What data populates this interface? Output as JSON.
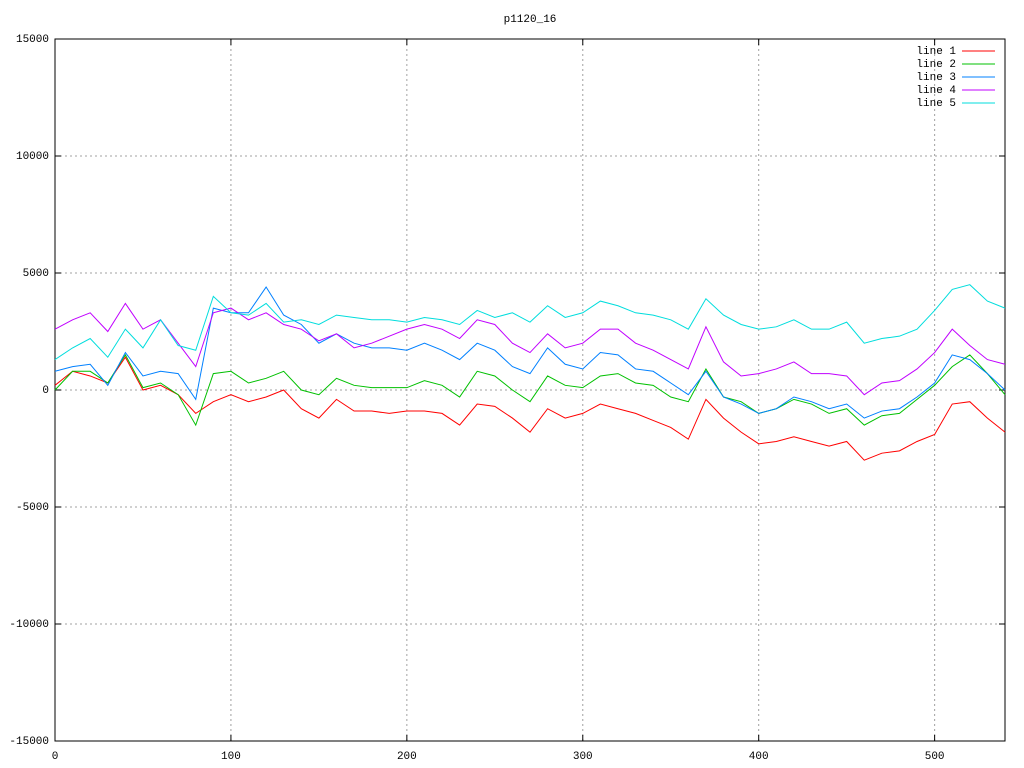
{
  "chart_data": {
    "type": "line",
    "title": "p1120_16",
    "x": [
      0,
      10,
      20,
      30,
      40,
      50,
      60,
      70,
      80,
      90,
      100,
      110,
      120,
      130,
      140,
      150,
      160,
      170,
      180,
      190,
      200,
      210,
      220,
      230,
      240,
      250,
      260,
      270,
      280,
      290,
      300,
      310,
      320,
      330,
      340,
      350,
      360,
      370,
      380,
      390,
      400,
      410,
      420,
      430,
      440,
      450,
      460,
      470,
      480,
      490,
      500,
      510,
      520,
      530,
      540
    ],
    "xlim": [
      0,
      540
    ],
    "xticks": [
      0,
      100,
      200,
      300,
      400,
      500
    ],
    "ylim": [
      -15000,
      15000
    ],
    "yticks": [
      -15000,
      -10000,
      -5000,
      0,
      5000,
      10000,
      15000
    ],
    "grid": true,
    "legend": "top-right",
    "series": [
      {
        "name": "line 1",
        "color": "#ff0000",
        "values": [
          200,
          800,
          600,
          300,
          1400,
          0,
          200,
          -200,
          -1000,
          -500,
          -200,
          -500,
          -300,
          0,
          -800,
          -1200,
          -400,
          -900,
          -900,
          -1000,
          -900,
          -900,
          -1000,
          -1500,
          -600,
          -700,
          -1200,
          -1800,
          -800,
          -1200,
          -1000,
          -600,
          -800,
          -1000,
          -1300,
          -1600,
          -2100,
          -400,
          -1200,
          -1800,
          -2300,
          -2200,
          -2000,
          -2200,
          -2400,
          -2200,
          -3000,
          -2700,
          -2600,
          -2200,
          -1900,
          -600,
          -500,
          -1200,
          -1800
        ]
      },
      {
        "name": "line 2",
        "color": "#00c000",
        "values": [
          0,
          800,
          800,
          300,
          1500,
          100,
          300,
          -200,
          -1500,
          700,
          800,
          300,
          500,
          800,
          0,
          -200,
          500,
          200,
          100,
          100,
          100,
          400,
          200,
          -300,
          800,
          600,
          0,
          -500,
          600,
          200,
          100,
          600,
          700,
          300,
          200,
          -300,
          -500,
          900,
          -300,
          -500,
          -1000,
          -800,
          -400,
          -600,
          -1000,
          -800,
          -1500,
          -1100,
          -1000,
          -400,
          200,
          1000,
          1500,
          700,
          -200
        ]
      },
      {
        "name": "line 3",
        "color": "#0080ff",
        "values": [
          800,
          1000,
          1100,
          200,
          1600,
          600,
          800,
          700,
          -400,
          3500,
          3300,
          3300,
          4400,
          3200,
          2800,
          2000,
          2400,
          2000,
          1800,
          1800,
          1700,
          2000,
          1700,
          1300,
          2000,
          1700,
          1000,
          700,
          1800,
          1100,
          900,
          1600,
          1500,
          900,
          800,
          300,
          -200,
          800,
          -300,
          -600,
          -1000,
          -800,
          -300,
          -500,
          -800,
          -600,
          -1200,
          -900,
          -800,
          -300,
          300,
          1500,
          1300,
          700,
          0
        ]
      },
      {
        "name": "line 4",
        "color": "#c000ff",
        "values": [
          2600,
          3000,
          3300,
          2500,
          3700,
          2600,
          3000,
          2000,
          1000,
          3300,
          3500,
          3000,
          3300,
          2800,
          2600,
          2100,
          2400,
          1800,
          2000,
          2300,
          2600,
          2800,
          2600,
          2200,
          3000,
          2800,
          2000,
          1600,
          2400,
          1800,
          2000,
          2600,
          2600,
          2000,
          1700,
          1300,
          900,
          2700,
          1200,
          600,
          700,
          900,
          1200,
          700,
          700,
          600,
          -200,
          300,
          400,
          900,
          1600,
          2600,
          1900,
          1300,
          1100
        ]
      },
      {
        "name": "line 5",
        "color": "#00dddd",
        "values": [
          1300,
          1800,
          2200,
          1400,
          2600,
          1800,
          3000,
          1900,
          1700,
          4000,
          3300,
          3200,
          3700,
          2900,
          3000,
          2800,
          3200,
          3100,
          3000,
          3000,
          2900,
          3100,
          3000,
          2800,
          3400,
          3100,
          3300,
          2900,
          3600,
          3100,
          3300,
          3800,
          3600,
          3300,
          3200,
          3000,
          2600,
          3900,
          3200,
          2800,
          2600,
          2700,
          3000,
          2600,
          2600,
          2900,
          2000,
          2200,
          2300,
          2600,
          3400,
          4300,
          4500,
          3800,
          3500
        ]
      }
    ]
  }
}
